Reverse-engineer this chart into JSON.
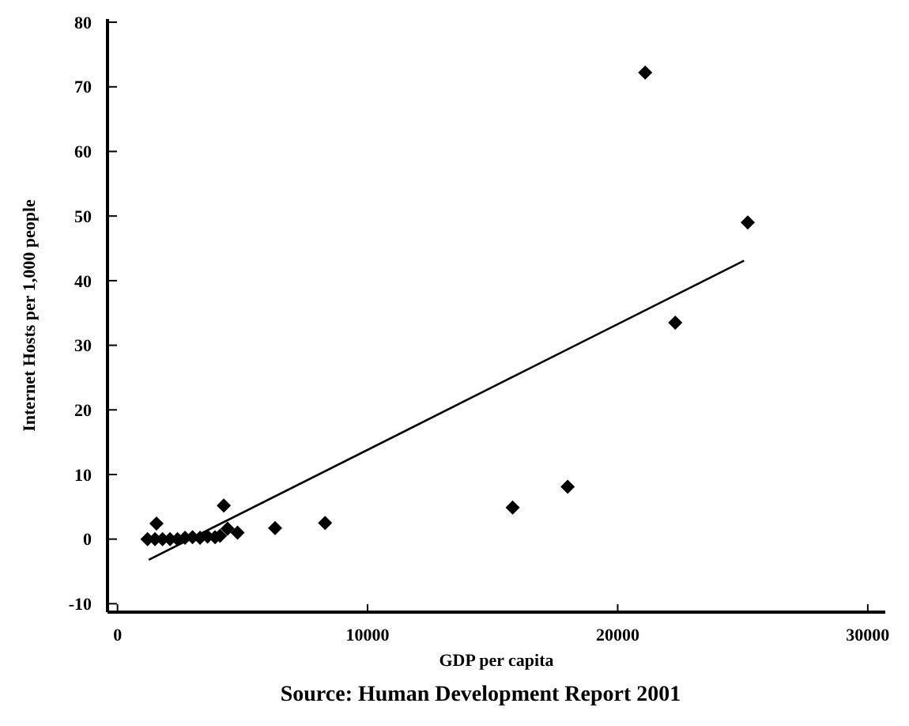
{
  "chart_data": {
    "type": "scatter",
    "xlabel": "GDP per capita",
    "ylabel": "Internet Hosts per 1,000 people",
    "annotations": [
      "Source: Human Development Report 2001"
    ],
    "xlim": [
      -400,
      30700
    ],
    "ylim": [
      -11.3,
      80.5
    ],
    "xticks": [
      0,
      10000,
      20000,
      30000
    ],
    "yticks": [
      -10,
      0,
      10,
      20,
      30,
      40,
      50,
      60,
      70,
      80
    ],
    "grid": false,
    "series": [
      {
        "color": "#000000",
        "marker": "diamond",
        "x": [
          1200,
          1500,
          1560,
          1800,
          2100,
          2400,
          2700,
          3000,
          3300,
          3600,
          3900,
          4100,
          4250,
          4400,
          4800,
          6300,
          8300,
          15800,
          18000,
          21100,
          22300,
          25200
        ],
        "values": [
          0,
          0,
          2.4,
          0,
          0,
          0,
          0.2,
          0.3,
          0.2,
          0.4,
          0.3,
          0.5,
          5.2,
          1.6,
          1.0,
          1.7,
          2.5,
          4.9,
          8.1,
          72.2,
          33.5,
          49
        ]
      },
      {
        "type": "line",
        "color": "#000000",
        "marker": "none",
        "x": [
          1250,
          25050
        ],
        "values": [
          -3.2,
          43.1
        ]
      }
    ]
  }
}
